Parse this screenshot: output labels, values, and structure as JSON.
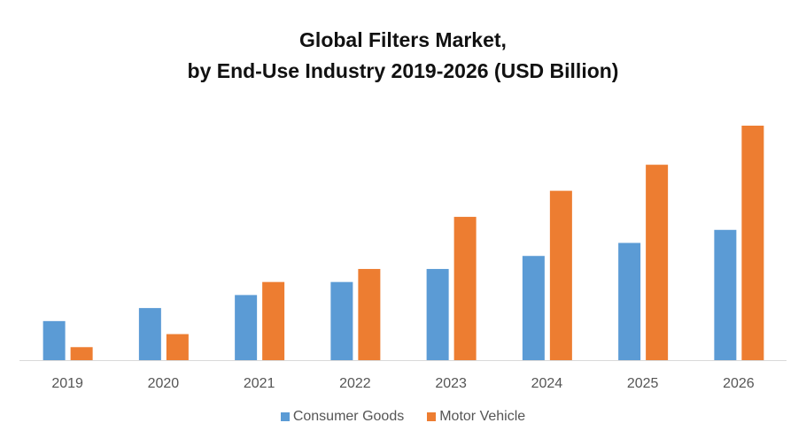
{
  "chart_data": {
    "type": "bar",
    "title_line1": "Global Filters Market,",
    "title_line2": "by End-Use Industry 2019-2026 (USD Billion)",
    "xlabel": "",
    "ylabel": "",
    "categories": [
      "2019",
      "2020",
      "2021",
      "2022",
      "2023",
      "2024",
      "2025",
      "2026"
    ],
    "series": [
      {
        "name": "Consumer Goods",
        "color": "#5B9BD5",
        "values": [
          3,
          4,
          5,
          6,
          7,
          8,
          9,
          10
        ]
      },
      {
        "name": "Motor Vehicle",
        "color": "#ED7D31",
        "values": [
          1,
          2,
          6,
          7,
          11,
          13,
          15,
          18
        ]
      }
    ],
    "ylim": [
      0,
      18
    ],
    "grid": false,
    "y_axis_shown": false,
    "legend_position": "bottom"
  }
}
